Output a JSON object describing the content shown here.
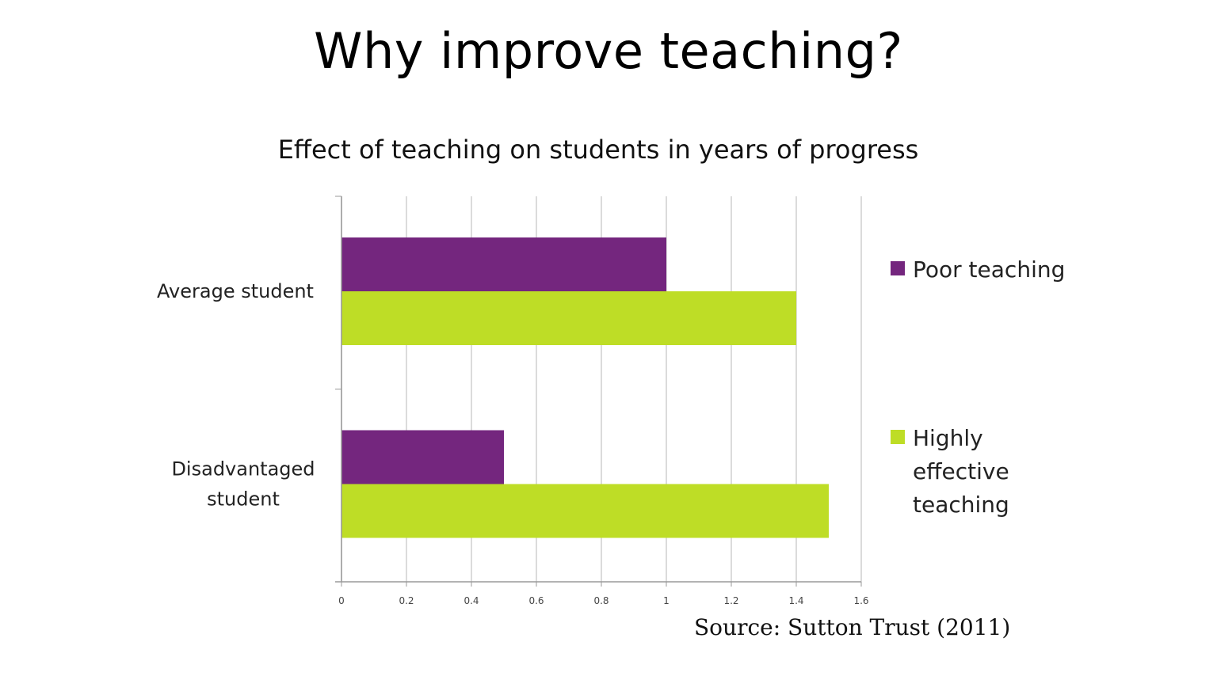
{
  "slide": {
    "title": "Why improve teaching?",
    "source": "Source: Sutton Trust (2011)"
  },
  "chart_data": {
    "type": "bar",
    "orientation": "horizontal",
    "title": "Effect of teaching on students in years of progress",
    "xlabel": "",
    "ylabel": "",
    "categories": [
      [
        "Average student"
      ],
      [
        "Disadvantaged",
        "student"
      ]
    ],
    "series": [
      {
        "name": "Poor teaching",
        "color": "#74267e",
        "values": [
          1.0,
          0.5
        ]
      },
      {
        "name": "Highly effective teaching",
        "legend_lines": [
          "Highly",
          "effective",
          "teaching"
        ],
        "color": "#bedd26",
        "values": [
          1.4,
          1.5
        ]
      }
    ],
    "xlim": [
      0,
      1.6
    ],
    "xticks": [
      "0",
      "0.2",
      "0.4",
      "0.6",
      "0.8",
      "1",
      "1.2",
      "1.4",
      "1.6"
    ],
    "grid": true,
    "legend_position": "right"
  }
}
